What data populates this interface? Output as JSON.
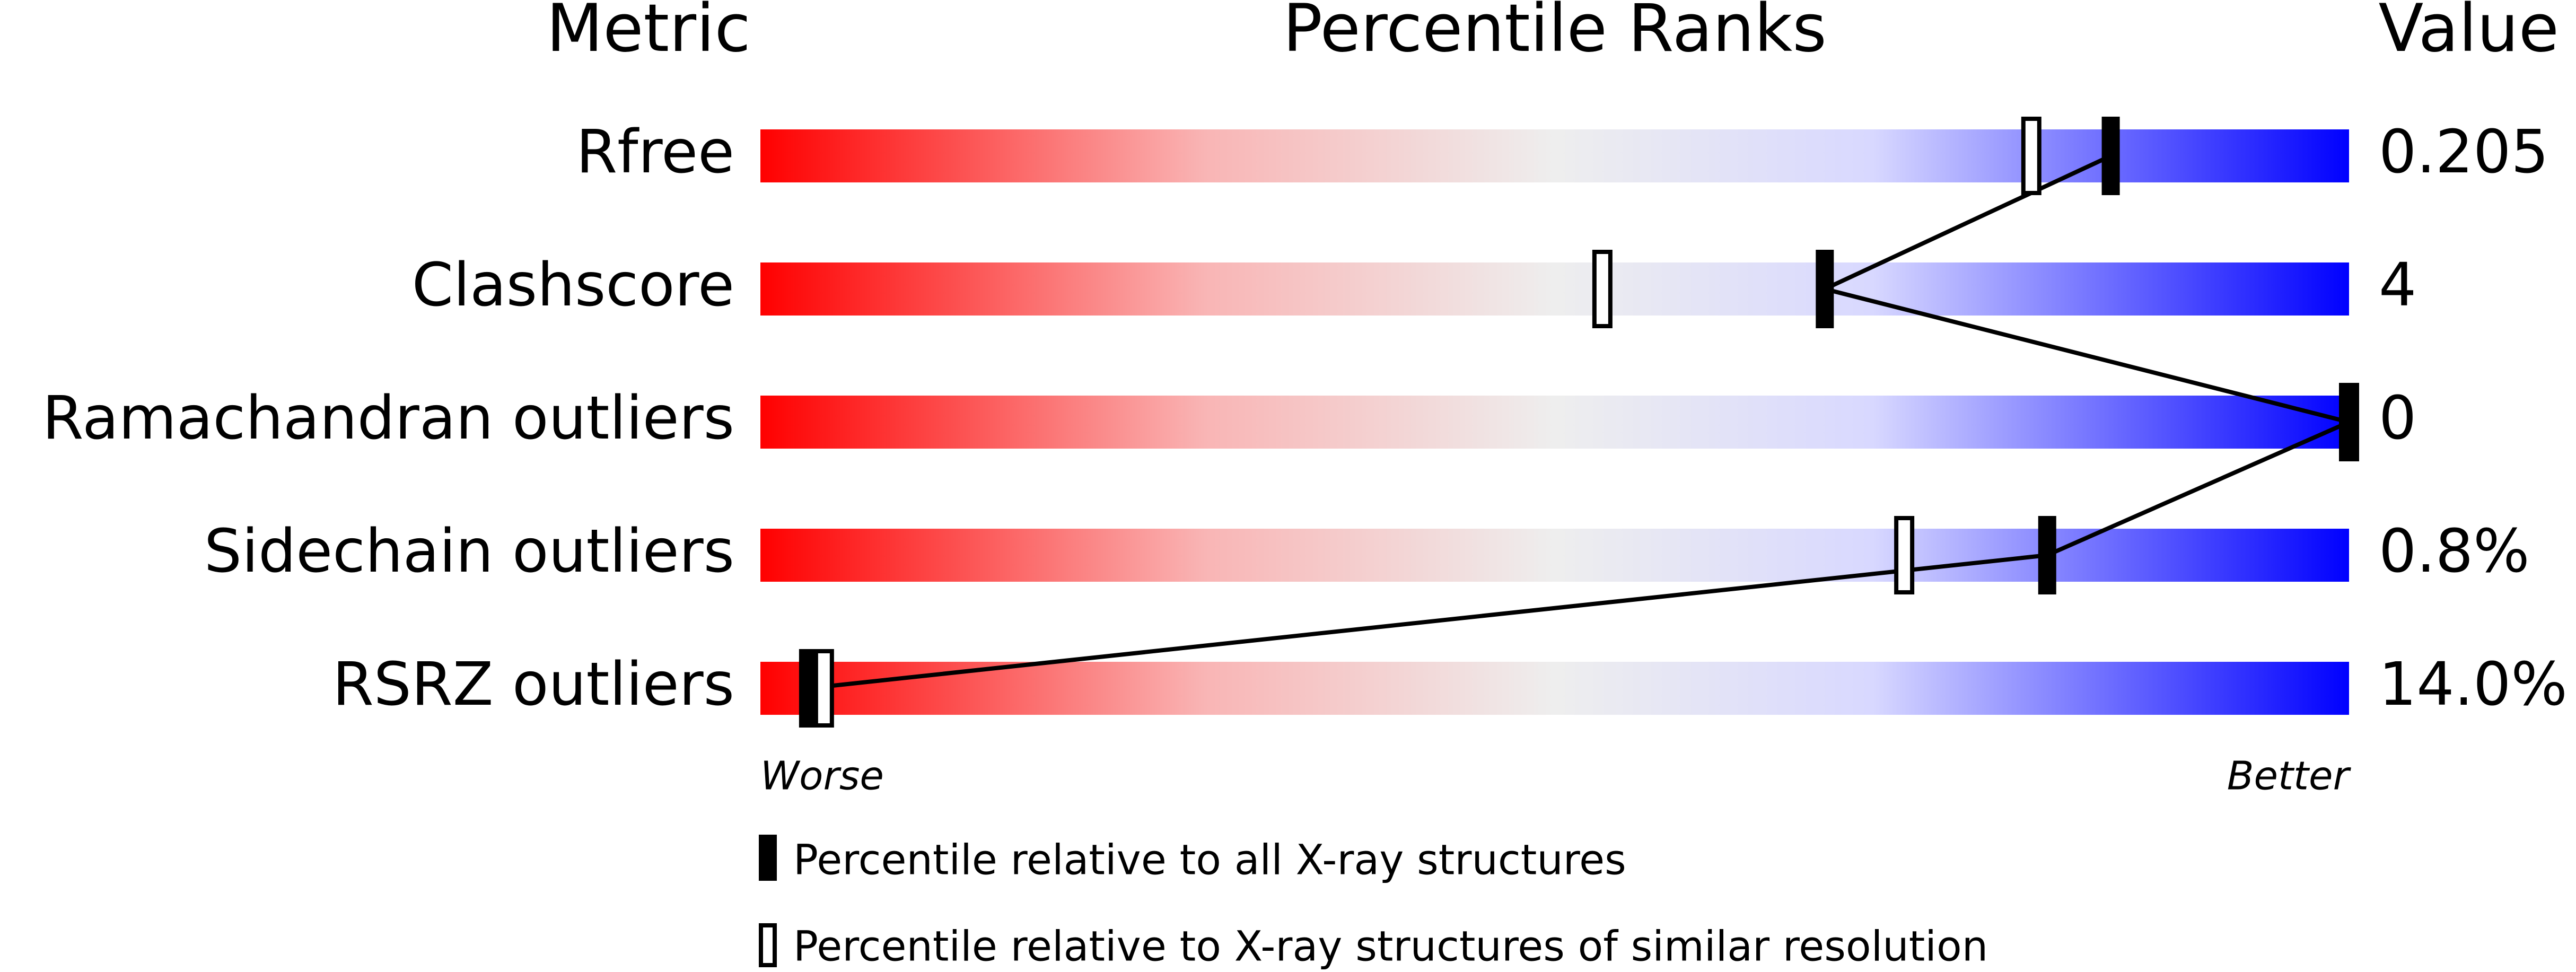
{
  "chart_data": {
    "type": "percentile",
    "headers": {
      "metric": "Metric",
      "ranks": "Percentile Ranks",
      "value": "Value"
    },
    "categories": [
      "Rfree",
      "Clashscore",
      "Ramachandran outliers",
      "Sidechain outliers",
      "RSRZ outliers"
    ],
    "metric_values": [
      "0.205",
      "4",
      "0",
      "0.8%",
      "14.0%"
    ],
    "series": [
      {
        "name": "Percentile relative to all X-ray structures",
        "color": "#000000",
        "values": [
          85,
          67,
          100,
          81,
          3
        ]
      },
      {
        "name": "Percentile relative to X-ray structures of similar resolution",
        "color": "#000000",
        "values": [
          80,
          53,
          100,
          72,
          4
        ]
      }
    ],
    "xlim": [
      0,
      100
    ],
    "axis_labels": {
      "low": "Worse",
      "high": "Better"
    }
  }
}
